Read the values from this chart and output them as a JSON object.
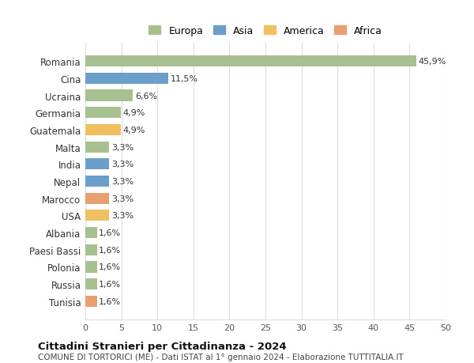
{
  "categories": [
    "Romania",
    "Cina",
    "Ucraina",
    "Germania",
    "Guatemala",
    "Malta",
    "India",
    "Nepal",
    "Marocco",
    "USA",
    "Albania",
    "Paesi Bassi",
    "Polonia",
    "Russia",
    "Tunisia"
  ],
  "values": [
    45.9,
    11.5,
    6.6,
    4.9,
    4.9,
    3.3,
    3.3,
    3.3,
    3.3,
    3.3,
    1.6,
    1.6,
    1.6,
    1.6,
    1.6
  ],
  "labels": [
    "45,9%",
    "11,5%",
    "6,6%",
    "4,9%",
    "4,9%",
    "3,3%",
    "3,3%",
    "3,3%",
    "3,3%",
    "3,3%",
    "1,6%",
    "1,6%",
    "1,6%",
    "1,6%",
    "1,6%"
  ],
  "continent": [
    "Europa",
    "Asia",
    "Europa",
    "Europa",
    "America",
    "Europa",
    "Asia",
    "Asia",
    "Africa",
    "America",
    "Europa",
    "Europa",
    "Europa",
    "Europa",
    "Africa"
  ],
  "colors": {
    "Europa": "#a8c090",
    "Asia": "#6b9ec8",
    "America": "#f0c060",
    "Africa": "#e8a070"
  },
  "legend_order": [
    "Europa",
    "Asia",
    "America",
    "Africa"
  ],
  "xlim": [
    0,
    50
  ],
  "xticks": [
    0,
    5,
    10,
    15,
    20,
    25,
    30,
    35,
    40,
    45,
    50
  ],
  "title": "Cittadini Stranieri per Cittadinanza - 2024",
  "subtitle": "COMUNE DI TORTORICI (ME) - Dati ISTAT al 1° gennaio 2024 - Elaborazione TUTTITALIA.IT",
  "bg_color": "#ffffff",
  "grid_color": "#dddddd",
  "bar_height": 0.65
}
